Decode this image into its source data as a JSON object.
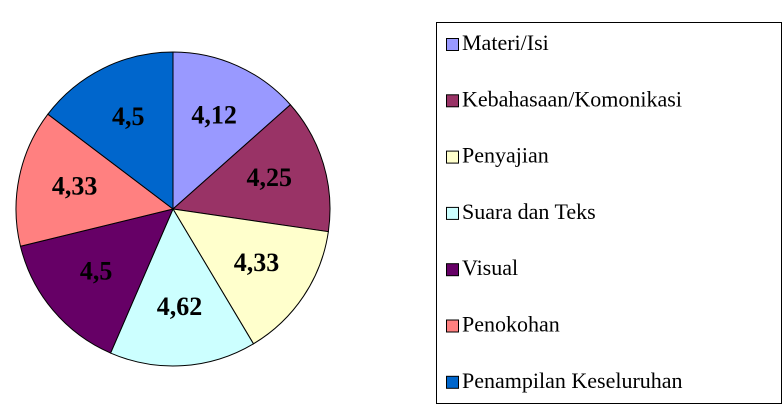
{
  "chart_data": {
    "type": "pie",
    "categories": [
      "Materi/Isi",
      "Kebahasaan/Komonikasi",
      "Penyajian",
      "Suara dan Teks",
      "Visual",
      "Penokohan",
      "Penampilan Keseluruhan"
    ],
    "values": [
      4.12,
      4.25,
      4.33,
      4.62,
      4.5,
      4.33,
      4.5
    ],
    "value_labels": [
      "4,12",
      "4,25",
      "4,33",
      "4,62",
      "4,5",
      "4,33",
      "4,5"
    ],
    "colors": [
      "#9999ff",
      "#993366",
      "#ffffcc",
      "#ccffff",
      "#660066",
      "#ff8080",
      "#0066cc"
    ],
    "legend": "right"
  }
}
